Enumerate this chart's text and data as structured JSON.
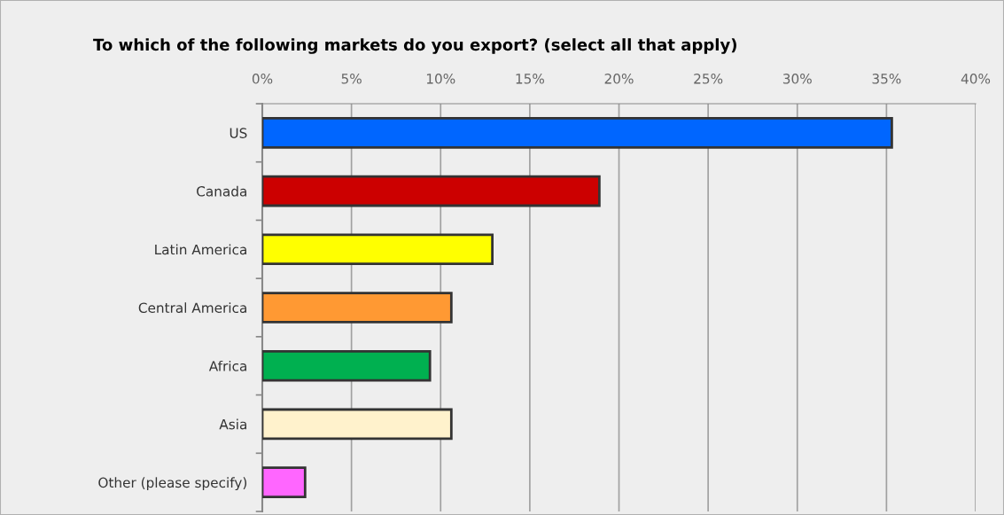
{
  "chart_data": {
    "type": "bar",
    "orientation": "horizontal",
    "title": "To which of the following markets do you export? (select all that apply)",
    "categories": [
      "US",
      "Canada",
      "Latin America",
      "Central America",
      "Africa",
      "Asia",
      "Other (please specify)"
    ],
    "values": [
      35.3,
      18.9,
      12.9,
      10.6,
      9.4,
      10.6,
      2.4
    ],
    "colors": [
      "#0066ff",
      "#cc0000",
      "#ffff00",
      "#ff9933",
      "#00b050",
      "#fff2cc",
      "#ff66ff"
    ],
    "xlim": [
      0,
      40
    ],
    "xticks": [
      {
        "value": 0,
        "label": "0%"
      },
      {
        "value": 5,
        "label": "5%"
      },
      {
        "value": 10,
        "label": "10%"
      },
      {
        "value": 15,
        "label": "15%"
      },
      {
        "value": 20,
        "label": "20%"
      },
      {
        "value": 25,
        "label": "25%"
      },
      {
        "value": 30,
        "label": "30%"
      },
      {
        "value": 35,
        "label": "35%"
      },
      {
        "value": 40,
        "label": "40%"
      }
    ],
    "grid": "x",
    "legend": false
  }
}
